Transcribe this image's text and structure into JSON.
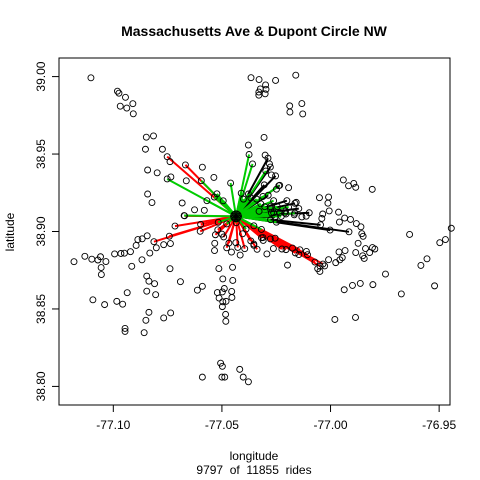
{
  "chart_data": {
    "type": "scatter",
    "title": "Massachusetts Ave & Dupont Circle NW",
    "xlabel": "longitude",
    "ylabel": "latitude",
    "subtitle": "9797  of  11855  rides",
    "xlim": [
      -77.125,
      -76.945
    ],
    "ylim": [
      38.788,
      39.012
    ],
    "xticks": [
      -77.1,
      -77.05,
      -77.0,
      -76.95
    ],
    "xtick_labels": [
      "-77.10",
      "-77.05",
      "-77.00",
      "-76.95"
    ],
    "yticks": [
      38.8,
      38.85,
      38.9,
      38.95,
      39.0
    ],
    "ytick_labels": [
      "38.80",
      "38.85",
      "38.90",
      "38.95",
      "39.00"
    ],
    "grid": false,
    "hub": {
      "lon": -77.0435,
      "lat": 38.9098
    },
    "points": [
      [
        -77.1103,
        38.9992
      ],
      [
        -77.0981,
        38.9906
      ],
      [
        -77.0974,
        38.9893
      ],
      [
        -77.0944,
        38.9866
      ],
      [
        -77.0968,
        38.9809
      ],
      [
        -77.0938,
        38.9797
      ],
      [
        -77.091,
        38.9825
      ],
      [
        -77.0908,
        38.976
      ],
      [
        -77.0848,
        38.9609
      ],
      [
        -77.0815,
        38.9617
      ],
      [
        -77.0852,
        38.9531
      ],
      [
        -77.0774,
        38.9531
      ],
      [
        -77.0739,
        38.9451
      ],
      [
        -77.0798,
        38.9379
      ],
      [
        -77.0842,
        38.9397
      ],
      [
        -77.0735,
        38.9352
      ],
      [
        -77.0664,
        38.9327
      ],
      [
        -77.059,
        38.9415
      ],
      [
        -77.0537,
        38.9349
      ],
      [
        -77.0683,
        38.9184
      ],
      [
        -77.0626,
        38.914
      ],
      [
        -77.0581,
        38.9137
      ],
      [
        -77.0822,
        38.9187
      ],
      [
        -77.0842,
        38.9242
      ],
      [
        -77.1181,
        38.8805
      ],
      [
        -77.1131,
        38.884
      ],
      [
        -77.1071,
        38.8816
      ],
      [
        -77.1059,
        38.8837
      ],
      [
        -77.1034,
        38.8806
      ],
      [
        -77.1099,
        38.8821
      ],
      [
        -77.1056,
        38.8767
      ],
      [
        -77.1055,
        38.8722
      ],
      [
        -77.0994,
        38.8855
      ],
      [
        -77.0965,
        38.8858
      ],
      [
        -77.0949,
        38.886
      ],
      [
        -77.0921,
        38.887
      ],
      [
        -77.0895,
        38.891
      ],
      [
        -77.0867,
        38.8953
      ],
      [
        -77.0844,
        38.8972
      ],
      [
        -77.0887,
        38.8948
      ],
      [
        -77.0915,
        38.8775
      ],
      [
        -77.0868,
        38.8817
      ],
      [
        -77.0832,
        38.8861
      ],
      [
        -77.0802,
        38.8895
      ],
      [
        -77.0768,
        38.8915
      ],
      [
        -77.0737,
        38.8922
      ],
      [
        -77.0739,
        38.876
      ],
      [
        -77.0846,
        38.8712
      ],
      [
        -77.0836,
        38.8679
      ],
      [
        -77.081,
        38.8663
      ],
      [
        -77.0805,
        38.8592
      ],
      [
        -77.0846,
        38.8615
      ],
      [
        -77.0936,
        38.8605
      ],
      [
        -77.0957,
        38.8531
      ],
      [
        -77.0984,
        38.8549
      ],
      [
        -77.104,
        38.8528
      ],
      [
        -77.1094,
        38.8559
      ],
      [
        -77.0946,
        38.8374
      ],
      [
        -77.0946,
        38.8355
      ],
      [
        -77.085,
        38.8427
      ],
      [
        -77.0836,
        38.8478
      ],
      [
        -77.0858,
        38.8347
      ],
      [
        -77.0768,
        38.8442
      ],
      [
        -77.0736,
        38.8474
      ],
      [
        -77.0691,
        38.8676
      ],
      [
        -77.0613,
        38.8621
      ],
      [
        -77.059,
        38.8646
      ],
      [
        -77.0521,
        38.8606
      ],
      [
        -77.0498,
        38.861
      ],
      [
        -77.0489,
        38.8632
      ],
      [
        -77.0513,
        38.857
      ],
      [
        -77.0496,
        38.8546
      ],
      [
        -77.0481,
        38.8549
      ],
      [
        -77.0498,
        38.8515
      ],
      [
        -77.0483,
        38.8465
      ],
      [
        -77.0482,
        38.842
      ],
      [
        -77.0454,
        38.8574
      ],
      [
        -77.0455,
        38.8613
      ],
      [
        -77.045,
        38.8684
      ],
      [
        -77.0496,
        38.8694
      ],
      [
        -77.0514,
        38.8761
      ],
      [
        -77.0534,
        38.8877
      ],
      [
        -77.0533,
        38.8924
      ],
      [
        -77.0456,
        38.8867
      ],
      [
        -77.0451,
        38.8769
      ],
      [
        -77.059,
        38.806
      ],
      [
        -77.05,
        38.806
      ],
      [
        -77.0487,
        38.806
      ],
      [
        -77.0506,
        38.815
      ],
      [
        -77.0498,
        38.813
      ],
      [
        -77.0418,
        38.811
      ],
      [
        -77.0402,
        38.806
      ],
      [
        -77.0378,
        38.803
      ],
      [
        -77.0366,
        38.9993
      ],
      [
        -77.0329,
        38.9981
      ],
      [
        -77.0323,
        38.992
      ],
      [
        -77.033,
        38.99
      ],
      [
        -77.033,
        38.988
      ],
      [
        -77.0299,
        38.9946
      ],
      [
        -77.0297,
        38.9918
      ],
      [
        -77.0301,
        38.9889
      ],
      [
        -77.0253,
        38.9975
      ],
      [
        -77.016,
        39.0009
      ],
      [
        -77.0132,
        38.9826
      ],
      [
        -77.0188,
        38.9811
      ],
      [
        -77.0187,
        38.9771
      ],
      [
        -77.0128,
        38.9759
      ],
      [
        -77.0378,
        38.9558
      ],
      [
        -77.0306,
        38.9607
      ],
      [
        -77.0301,
        38.9493
      ],
      [
        -77.0281,
        38.9436
      ],
      [
        -77.0272,
        38.9365
      ],
      [
        -77.0249,
        38.9273
      ],
      [
        -77.0193,
        38.9283
      ],
      [
        -77.0158,
        38.9188
      ],
      [
        -77.0207,
        38.9133
      ],
      [
        -77.0167,
        38.9108
      ],
      [
        -77.0132,
        38.9094
      ],
      [
        -77.0112,
        38.9099
      ],
      [
        -77.0051,
        38.9218
      ],
      [
        -77.0009,
        38.9222
      ],
      [
        -77.0012,
        38.9183
      ],
      [
        -77.0006,
        38.9133
      ],
      [
        -77.0036,
        38.9113
      ],
      [
        -77.004,
        38.9084
      ],
      [
        -76.9963,
        38.9125
      ],
      [
        -76.9959,
        38.9061
      ],
      [
        -76.9935,
        38.9087
      ],
      [
        -76.9908,
        38.9078
      ],
      [
        -76.9941,
        38.9333
      ],
      [
        -76.9917,
        38.9295
      ],
      [
        -76.9893,
        38.931
      ],
      [
        -76.9884,
        38.9285
      ],
      [
        -76.9808,
        38.9272
      ],
      [
        -76.9881,
        38.9051
      ],
      [
        -76.986,
        38.903
      ],
      [
        -76.9856,
        38.8986
      ],
      [
        -76.985,
        38.8969
      ],
      [
        -76.9873,
        38.8924
      ],
      [
        -76.9884,
        38.8864
      ],
      [
        -76.9852,
        38.8843
      ],
      [
        -76.9845,
        38.8826
      ],
      [
        -76.9839,
        38.889
      ],
      [
        -76.9807,
        38.8896
      ],
      [
        -76.982,
        38.8864
      ],
      [
        -76.9933,
        38.8877
      ],
      [
        -76.9946,
        38.8831
      ],
      [
        -76.9961,
        38.8868
      ],
      [
        -76.9957,
        38.8817
      ],
      [
        -76.9976,
        38.8799
      ],
      [
        -77.0009,
        38.8818
      ],
      [
        -77.0059,
        38.876
      ],
      [
        -77.0027,
        38.8778
      ],
      [
        -77.0049,
        38.8742
      ],
      [
        -76.9937,
        38.8624
      ],
      [
        -76.9899,
        38.8652
      ],
      [
        -76.9863,
        38.8665
      ],
      [
        -76.9805,
        38.8657
      ],
      [
        -76.9885,
        38.8445
      ],
      [
        -76.998,
        38.8432
      ],
      [
        -76.9747,
        38.8725
      ],
      [
        -76.9674,
        38.8597
      ],
      [
        -76.9584,
        38.8781
      ],
      [
        -76.9556,
        38.8824
      ],
      [
        -76.9521,
        38.8649
      ],
      [
        -76.9497,
        38.8928
      ],
      [
        -76.9471,
        38.8948
      ],
      [
        -76.9444,
        38.9021
      ],
      [
        -76.9636,
        38.8981
      ],
      [
        -76.9796,
        38.8887
      ],
      [
        -77.0198,
        38.8783
      ],
      [
        -77.0146,
        38.8851
      ],
      [
        -77.0111,
        38.8871
      ],
      [
        -77.0175,
        38.8893
      ],
      [
        -77.0263,
        38.889
      ],
      [
        -77.0293,
        38.8855
      ],
      [
        -77.031,
        38.8942
      ],
      [
        -77.0353,
        38.8911
      ],
      [
        -77.0416,
        38.8848
      ],
      [
        -77.0405,
        38.8985
      ],
      [
        -77.0436,
        38.8928
      ],
      [
        -77.05,
        38.8983
      ]
    ],
    "series": [
      {
        "name": "",
        "color": "#ff0000",
        "segments": [
          [
            -77.0813,
            38.8934
          ],
          [
            -77.0742,
            38.897
          ],
          [
            -77.0716,
            38.9035
          ],
          [
            -77.0672,
            38.9101
          ],
          [
            -77.0598,
            38.9046
          ],
          [
            -77.053,
            38.8979
          ],
          [
            -77.0492,
            38.8965
          ],
          [
            -77.0468,
            38.8925
          ],
          [
            -77.0478,
            38.8895
          ],
          [
            -77.0519,
            38.9011
          ],
          [
            -77.06,
            38.9001
          ],
          [
            -77.0752,
            38.9483
          ],
          [
            -77.0668,
            38.943
          ],
          [
            -77.0395,
            38.8889
          ],
          [
            -77.0353,
            38.8919
          ],
          [
            -77.0318,
            38.8959
          ],
          [
            -77.0277,
            38.8952
          ],
          [
            -77.0255,
            38.8957
          ],
          [
            -77.0224,
            38.8887
          ],
          [
            -77.0205,
            38.8883
          ],
          [
            -77.0162,
            38.8862
          ],
          [
            -77.0141,
            38.8882
          ],
          [
            -77.0106,
            38.885
          ],
          [
            -77.0048,
            38.8776
          ],
          [
            -77.0035,
            38.879
          ],
          [
            -77.0072,
            38.8803
          ],
          [
            -77.0338,
            38.8885
          ],
          [
            -77.0427,
            38.8897
          ],
          [
            -77.0367,
            38.8939
          ],
          [
            -77.0311,
            38.8961
          ]
        ]
      },
      {
        "name": "",
        "color": "#00cc00",
        "segments": [
          [
            -77.0752,
            38.9339
          ],
          [
            -77.0595,
            38.9328
          ],
          [
            -77.0523,
            38.9243
          ],
          [
            -77.0375,
            38.9497
          ],
          [
            -77.0359,
            38.9436
          ],
          [
            -77.0298,
            38.939
          ],
          [
            -77.0238,
            38.9296
          ],
          [
            -77.0193,
            38.9158
          ],
          [
            -77.0165,
            38.9118
          ],
          [
            -77.0211,
            38.912
          ],
          [
            -77.0233,
            38.9123
          ],
          [
            -77.0249,
            38.906
          ],
          [
            -77.0276,
            38.9076
          ],
          [
            -77.0318,
            38.9013
          ],
          [
            -77.0329,
            38.913
          ],
          [
            -77.0303,
            38.916
          ],
          [
            -77.0277,
            38.916
          ],
          [
            -77.0245,
            38.916
          ],
          [
            -77.0262,
            38.9199
          ],
          [
            -77.0321,
            38.9179
          ],
          [
            -77.034,
            38.9209
          ],
          [
            -77.0311,
            38.9226
          ],
          [
            -77.0367,
            38.9217
          ],
          [
            -77.0378,
            38.9242
          ],
          [
            -77.0401,
            38.9209
          ],
          [
            -77.0411,
            38.9247
          ],
          [
            -77.046,
            38.9313
          ],
          [
            -77.0494,
            38.9198
          ],
          [
            -77.0535,
            38.9222
          ],
          [
            -77.0569,
            38.9199
          ],
          [
            -77.0674,
            38.9103
          ],
          [
            -77.0517,
            38.9059
          ],
          [
            -77.0478,
            38.9049
          ],
          [
            -77.0434,
            38.9057
          ],
          [
            -77.0389,
            38.9016
          ],
          [
            -77.0353,
            38.9037
          ],
          [
            -77.0276,
            38.9145
          ],
          [
            -77.0262,
            38.9121
          ],
          [
            -77.0227,
            38.9097
          ],
          [
            -77.0205,
            38.9113
          ]
        ]
      },
      {
        "name": "",
        "color": "#000000",
        "segments": [
          [
            -77.0288,
            38.9473
          ],
          [
            -77.0277,
            38.9416
          ],
          [
            -77.0253,
            38.9359
          ],
          [
            -77.0234,
            38.9298
          ],
          [
            -77.0201,
            38.9199
          ],
          [
            -77.0164,
            38.9182
          ],
          [
            -77.0146,
            38.9148
          ],
          [
            -77.0098,
            38.9121
          ],
          [
            -77.0046,
            38.9043
          ],
          [
            -77.0002,
            38.9009
          ],
          [
            -76.9915,
            38.8998
          ],
          [
            -77.0287,
            38.9234
          ],
          [
            -77.0305,
            38.9301
          ],
          [
            -77.0272,
            38.912
          ],
          [
            -77.0256,
            38.9092
          ]
        ]
      }
    ]
  }
}
